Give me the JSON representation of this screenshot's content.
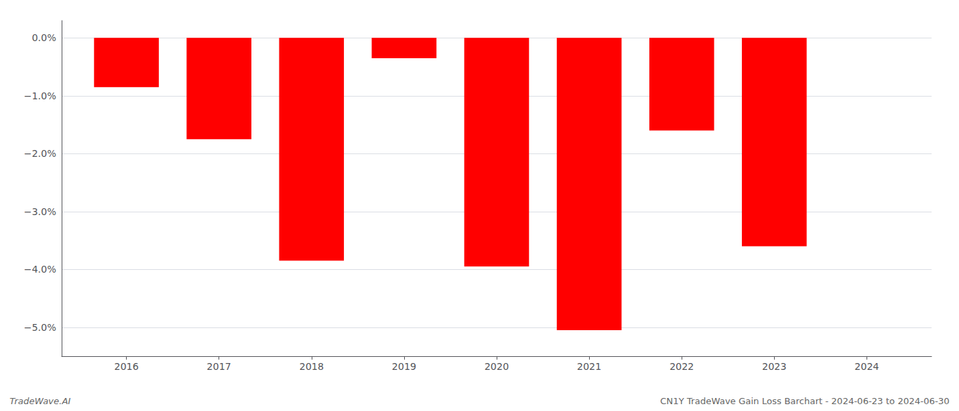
{
  "chart_data": {
    "type": "bar",
    "x": [
      2016,
      2017,
      2018,
      2019,
      2020,
      2021,
      2022,
      2023,
      2024
    ],
    "values": [
      -0.0085,
      -0.0175,
      -0.0385,
      -0.0035,
      -0.0395,
      -0.0505,
      -0.016,
      -0.036,
      null
    ],
    "color": "#ff0000",
    "xlim": [
      2015.3,
      2024.7
    ],
    "xticks": [
      2016,
      2017,
      2018,
      2019,
      2020,
      2021,
      2022,
      2023,
      2024
    ],
    "ylim": [
      -0.055,
      0.003
    ],
    "yticks": [
      {
        "value": 0.0,
        "label": "0.0%"
      },
      {
        "value": -0.01,
        "label": "−1.0%"
      },
      {
        "value": -0.02,
        "label": "−2.0%"
      },
      {
        "value": -0.03,
        "label": "−3.0%"
      },
      {
        "value": -0.04,
        "label": "−4.0%"
      },
      {
        "value": -0.05,
        "label": "−5.0%"
      }
    ],
    "grid": true,
    "annotations": [
      "TradeWave.AI",
      "CN1Y TradeWave Gain Loss Barchart - 2024-06-23 to 2024-06-30"
    ]
  }
}
